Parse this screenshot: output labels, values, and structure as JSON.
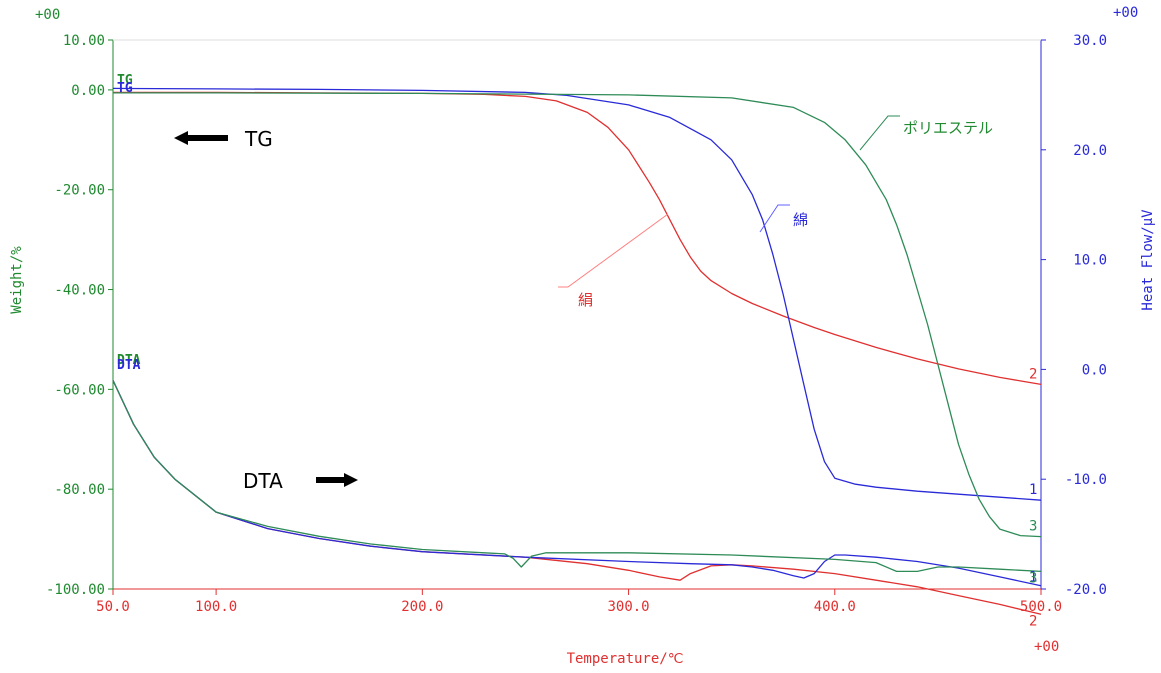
{
  "chart_data": {
    "type": "line",
    "title": "",
    "xlabel": "Temperature/℃",
    "ylabel_left": "Weight/%",
    "ylabel_right": "Heat Flow/μV",
    "xlim": [
      50,
      500
    ],
    "ylim_left": [
      -100,
      10
    ],
    "ylim_right": [
      -20,
      30
    ],
    "x_ticks": [
      "50.0",
      "100.0",
      "200.0",
      "300.0",
      "400.0",
      "500.0"
    ],
    "y_left_ticks": [
      "10.00",
      "0.00",
      "-20.00",
      "-40.00",
      "-60.00",
      "-80.00",
      "-100.00"
    ],
    "y_right_ticks": [
      "30.0",
      "20.0",
      "10.0",
      "0.0",
      "-10.0",
      "-20.0"
    ],
    "exponent_labels": {
      "left_top": "+00",
      "right_top": "+00",
      "x_right": "+00"
    },
    "grid": false,
    "series": [
      {
        "name": "TG 絹",
        "axis": "left",
        "color": "#e03030",
        "end_label": "2",
        "x": [
          50,
          100,
          150,
          200,
          230,
          250,
          265,
          280,
          290,
          300,
          310,
          315,
          320,
          325,
          330,
          335,
          340,
          350,
          360,
          375,
          390,
          400,
          420,
          440,
          460,
          480,
          500
        ],
        "y": [
          -0.5,
          -0.5,
          -0.6,
          -0.7,
          -0.9,
          -1.3,
          -2.2,
          -4.5,
          -7.5,
          -12,
          -18.5,
          -22,
          -26,
          -30,
          -33.5,
          -36.3,
          -38.2,
          -40.8,
          -42.8,
          -45.3,
          -47.6,
          -49,
          -51.6,
          -53.9,
          -55.9,
          -57.6,
          -59.0
        ]
      },
      {
        "name": "TG 綿",
        "axis": "left",
        "color": "#2a2ad8",
        "end_label": "1",
        "x": [
          50,
          100,
          150,
          200,
          250,
          270,
          300,
          320,
          340,
          350,
          360,
          365,
          370,
          375,
          380,
          385,
          390,
          395,
          400,
          410,
          420,
          440,
          460,
          480,
          500
        ],
        "y": [
          0.3,
          0.2,
          0.1,
          -0.1,
          -0.5,
          -1.1,
          -3,
          -5.5,
          -10,
          -14,
          -21,
          -26,
          -33,
          -41,
          -50,
          -59,
          -68,
          -74.5,
          -77.8,
          -79,
          -79.6,
          -80.4,
          -81,
          -81.6,
          -82.2
        ]
      },
      {
        "name": "TG ポリエステル",
        "axis": "left",
        "color": "#2e8b57",
        "end_label": "3",
        "x": [
          50,
          100,
          200,
          300,
          350,
          380,
          395,
          405,
          415,
          425,
          430,
          435,
          440,
          445,
          450,
          455,
          460,
          465,
          470,
          475,
          480,
          490,
          500
        ],
        "y": [
          -0.6,
          -0.6,
          -0.7,
          -1,
          -1.6,
          -3.5,
          -6.5,
          -10,
          -15,
          -22,
          -27,
          -33,
          -40,
          -47,
          -55,
          -63,
          -71,
          -77,
          -82,
          -85.5,
          -88,
          -89.3,
          -89.5
        ]
      },
      {
        "name": "DTA 絹",
        "axis": "right",
        "color": "#e03030",
        "end_label": "2",
        "x": [
          50,
          60,
          70,
          80,
          100,
          125,
          150,
          175,
          200,
          250,
          280,
          300,
          315,
          325,
          330,
          340,
          350,
          360,
          380,
          400,
          420,
          440,
          460,
          480,
          500
        ],
        "y": [
          -1,
          -5,
          -8,
          -10,
          -13,
          -14.5,
          -15.4,
          -16.1,
          -16.6,
          -17.1,
          -17.7,
          -18.3,
          -18.9,
          -19.2,
          -18.6,
          -17.9,
          -17.8,
          -17.9,
          -18.2,
          -18.6,
          -19.2,
          -19.8,
          -20.6,
          -21.4,
          -22.3
        ]
      },
      {
        "name": "DTA 綿",
        "axis": "right",
        "color": "#2a2ad8",
        "end_label": "1",
        "x": [
          50,
          60,
          70,
          80,
          100,
          125,
          150,
          175,
          200,
          250,
          300,
          330,
          350,
          360,
          370,
          380,
          385,
          390,
          395,
          400,
          405,
          420,
          440,
          460,
          480,
          500
        ],
        "y": [
          -1,
          -5,
          -8,
          -10,
          -13,
          -14.5,
          -15.4,
          -16.1,
          -16.6,
          -17.1,
          -17.5,
          -17.7,
          -17.8,
          -18.0,
          -18.3,
          -18.8,
          -19.0,
          -18.6,
          -17.5,
          -16.9,
          -16.9,
          -17.1,
          -17.5,
          -18.1,
          -18.9,
          -19.7
        ]
      },
      {
        "name": "DTA ポリエステル",
        "axis": "right",
        "color": "#2e8b57",
        "end_label": "3",
        "x": [
          50,
          60,
          70,
          80,
          100,
          125,
          150,
          175,
          200,
          230,
          240,
          244,
          248,
          253,
          260,
          280,
          300,
          350,
          400,
          420,
          430,
          440,
          450,
          460,
          480,
          500
        ],
        "y": [
          -1,
          -5,
          -8,
          -10,
          -13,
          -14.3,
          -15.2,
          -15.9,
          -16.4,
          -16.7,
          -16.8,
          -17.2,
          -18.0,
          -17.0,
          -16.7,
          -16.7,
          -16.7,
          -16.9,
          -17.3,
          -17.6,
          -18.4,
          -18.4,
          -18.0,
          -18.0,
          -18.2,
          -18.4
        ]
      }
    ],
    "annotations": [
      {
        "text": "TG",
        "arrow": "left"
      },
      {
        "text": "DTA",
        "arrow": "right"
      },
      {
        "text": "絹",
        "color": "#e03030"
      },
      {
        "text": "綿",
        "color": "#2a2ad8"
      },
      {
        "text": "ポリエステル",
        "color": "#2e8b57"
      }
    ],
    "curve_tags": {
      "tg": "TG",
      "dta": "DTA"
    }
  }
}
